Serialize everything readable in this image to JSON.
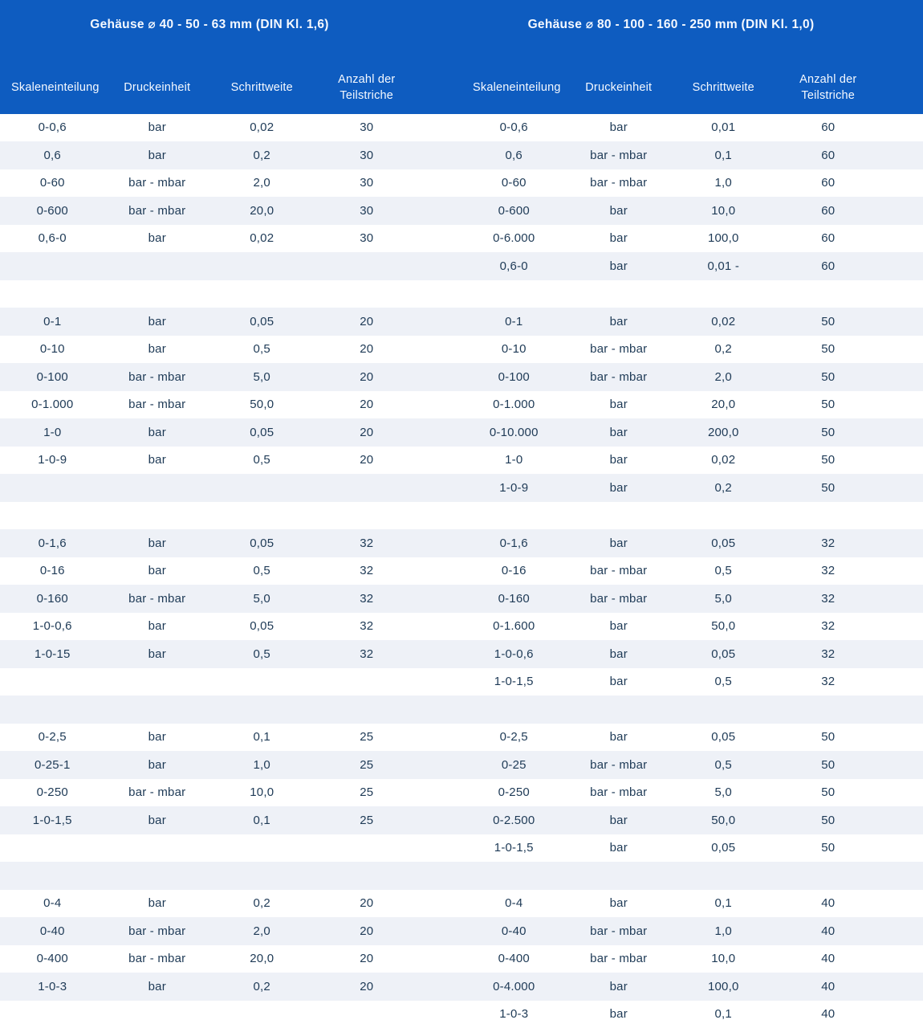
{
  "colors": {
    "header_bg": "#0e5cc0",
    "stripe": "#eef1f7",
    "row_text": "#1e3a56",
    "header_text": "#f5f9ff"
  },
  "header": {
    "left_table": {
      "title": "Gehäuse ⌀ 40 - 50 - 63 mm (DIN Kl. 1,6)",
      "columns": [
        "Skaleneinteilung",
        "Druckeinheit",
        "Schrittweite",
        "Anzahl der Teilstriche"
      ]
    },
    "right_table": {
      "title": "Gehäuse ⌀ 80 - 100 - 160 - 250 mm (DIN Kl. 1,0)",
      "columns": [
        "Skaleneinteilung",
        "Druckeinheit",
        "Schrittweite",
        "Anzahl der Teilstriche"
      ]
    }
  },
  "rows": [
    {
      "left": [
        "0-0,6",
        "bar",
        "0,02",
        "30"
      ],
      "right": [
        "0-0,6",
        "bar",
        "0,01",
        "60"
      ]
    },
    {
      "left": [
        "0,6",
        "bar",
        "0,2",
        "30"
      ],
      "right": [
        "0,6",
        "bar - mbar",
        "0,1",
        "60"
      ]
    },
    {
      "left": [
        "0-60",
        "bar - mbar",
        "2,0",
        "30"
      ],
      "right": [
        "0-60",
        "bar - mbar",
        "1,0",
        "60"
      ]
    },
    {
      "left": [
        "0-600",
        "bar - mbar",
        "20,0",
        "30"
      ],
      "right": [
        "0-600",
        "bar",
        "10,0",
        "60"
      ]
    },
    {
      "left": [
        "0,6-0",
        "bar",
        "0,02",
        "30"
      ],
      "right": [
        "0-6.000",
        "bar",
        "100,0",
        "60"
      ]
    },
    {
      "left": [],
      "right": [
        "0,6-0",
        "bar",
        "0,01 -",
        "60"
      ]
    },
    {
      "left": [],
      "right": []
    },
    {
      "left": [
        "0-1",
        "bar",
        "0,05",
        "20"
      ],
      "right": [
        "0-1",
        "bar",
        "0,02",
        "50"
      ]
    },
    {
      "left": [
        "0-10",
        "bar",
        "0,5",
        "20"
      ],
      "right": [
        "0-10",
        "bar - mbar",
        "0,2",
        "50"
      ]
    },
    {
      "left": [
        "0-100",
        "bar - mbar",
        "5,0",
        "20"
      ],
      "right": [
        "0-100",
        "bar - mbar",
        "2,0",
        "50"
      ]
    },
    {
      "left": [
        "0-1.000",
        "bar - mbar",
        "50,0",
        "20"
      ],
      "right": [
        "0-1.000",
        "bar",
        "20,0",
        "50"
      ]
    },
    {
      "left": [
        "1-0",
        "bar",
        "0,05",
        "20"
      ],
      "right": [
        "0-10.000",
        "bar",
        "200,0",
        "50"
      ]
    },
    {
      "left": [
        "1-0-9",
        "bar",
        "0,5",
        "20"
      ],
      "right": [
        "1-0",
        "bar",
        "0,02",
        "50"
      ]
    },
    {
      "left": [],
      "right": [
        "1-0-9",
        "bar",
        "0,2",
        "50"
      ]
    },
    {
      "left": [],
      "right": []
    },
    {
      "left": [
        "0-1,6",
        "bar",
        "0,05",
        "32"
      ],
      "right": [
        "0-1,6",
        "bar",
        "0,05",
        "32"
      ]
    },
    {
      "left": [
        "0-16",
        "bar",
        "0,5",
        "32"
      ],
      "right": [
        "0-16",
        "bar - mbar",
        "0,5",
        "32"
      ]
    },
    {
      "left": [
        "0-160",
        "bar - mbar",
        "5,0",
        "32"
      ],
      "right": [
        "0-160",
        "bar - mbar",
        "5,0",
        "32"
      ]
    },
    {
      "left": [
        "1-0-0,6",
        "bar",
        "0,05",
        "32"
      ],
      "right": [
        "0-1.600",
        "bar",
        "50,0",
        "32"
      ]
    },
    {
      "left": [
        "1-0-15",
        "bar",
        "0,5",
        "32"
      ],
      "right": [
        "1-0-0,6",
        "bar",
        "0,05",
        "32"
      ]
    },
    {
      "left": [],
      "right": [
        "1-0-1,5",
        "bar",
        "0,5",
        "32"
      ]
    },
    {
      "left": [],
      "right": []
    },
    {
      "left": [
        "0-2,5",
        "bar",
        "0,1",
        "25"
      ],
      "right": [
        "0-2,5",
        "bar",
        "0,05",
        "50"
      ]
    },
    {
      "left": [
        "0-25-1",
        "bar",
        "1,0",
        "25"
      ],
      "right": [
        "0-25",
        "bar - mbar",
        "0,5",
        "50"
      ]
    },
    {
      "left": [
        "0-250",
        "bar - mbar",
        "10,0",
        "25"
      ],
      "right": [
        "0-250",
        "bar - mbar",
        "5,0",
        "50"
      ]
    },
    {
      "left": [
        "1-0-1,5",
        "bar",
        "0,1",
        "25"
      ],
      "right": [
        "0-2.500",
        "bar",
        "50,0",
        "50"
      ]
    },
    {
      "left": [],
      "right": [
        "1-0-1,5",
        "bar",
        "0,05",
        "50"
      ]
    },
    {
      "left": [],
      "right": []
    },
    {
      "left": [
        "0-4",
        "bar",
        "0,2",
        "20"
      ],
      "right": [
        "0-4",
        "bar",
        "0,1",
        "40"
      ]
    },
    {
      "left": [
        "0-40",
        "bar - mbar",
        "2,0",
        "20"
      ],
      "right": [
        "0-40",
        "bar - mbar",
        "1,0",
        "40"
      ]
    },
    {
      "left": [
        "0-400",
        "bar - mbar",
        "20,0",
        "20"
      ],
      "right": [
        "0-400",
        "bar - mbar",
        "10,0",
        "40"
      ]
    },
    {
      "left": [
        "1-0-3",
        "bar",
        "0,2",
        "20"
      ],
      "right": [
        "0-4.000",
        "bar",
        "100,0",
        "40"
      ]
    },
    {
      "left": [],
      "right": [
        "1-0-3",
        "bar",
        "0,1",
        "40"
      ]
    }
  ]
}
